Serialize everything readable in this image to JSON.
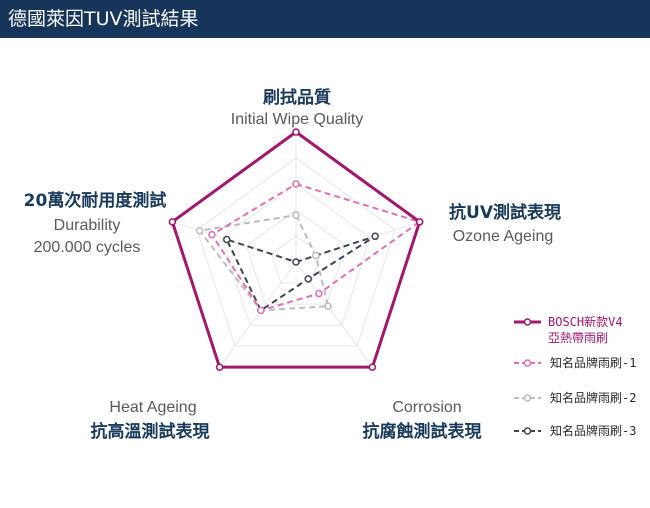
{
  "header": {
    "title": "德國萊因TUV測試結果"
  },
  "chart_data": {
    "type": "radar",
    "axes": [
      {
        "zh": "刷拭品質",
        "en": [
          "Initial Wipe Quality"
        ]
      },
      {
        "zh": "抗UV測試表現",
        "en": [
          "Ozone Ageing"
        ]
      },
      {
        "zh": "抗腐蝕測試表現",
        "en": [
          "Corrosion"
        ]
      },
      {
        "zh": "抗高溫測試表現",
        "en": [
          "Heat Ageing"
        ]
      },
      {
        "zh": "20萬次耐用度測試",
        "en": [
          "Durability",
          "200.000 cycles"
        ]
      }
    ],
    "rlim": [
      0,
      5
    ],
    "rings": 5,
    "series": [
      {
        "name": "BOSCH新款V4 亞熱帶雨刷",
        "values": [
          5,
          5,
          5,
          5,
          5
        ],
        "color": "#a0176e",
        "style": "solid"
      },
      {
        "name": "知名品牌雨刷-1",
        "values": [
          3,
          5,
          1.5,
          2.3,
          3.4
        ],
        "color": "#e071b5",
        "style": "dashed"
      },
      {
        "name": "知名品牌雨刷-2",
        "values": [
          1.8,
          0.8,
          2.1,
          2.3,
          3.9
        ],
        "color": "#bdbdbd",
        "style": "dashed"
      },
      {
        "name": "知名品牌雨刷-3",
        "values": [
          0,
          3.2,
          0.8,
          2.3,
          2.8
        ],
        "color": "#3d4552",
        "style": "dashed"
      }
    ],
    "legend_position": "right"
  }
}
